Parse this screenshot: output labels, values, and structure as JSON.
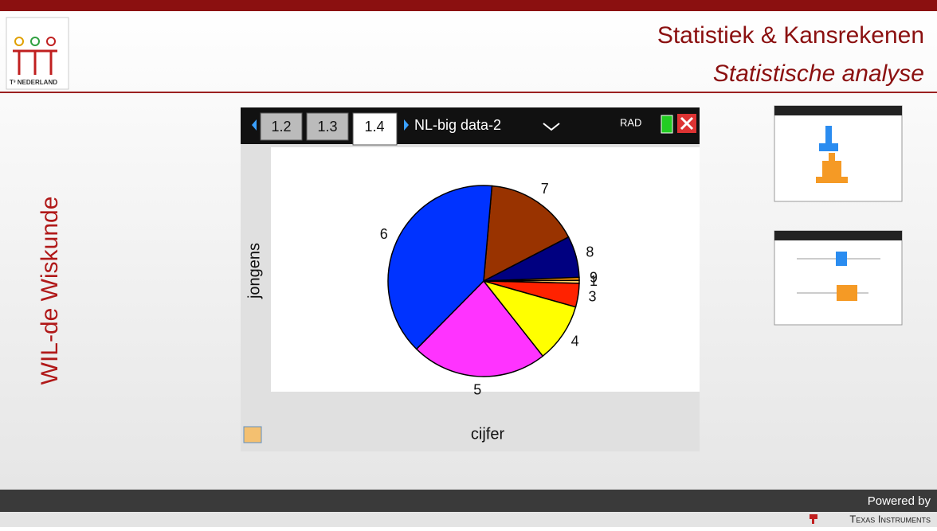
{
  "header": {
    "title": "Statistiek & Kansrekenen",
    "subtitle": "Statistische analyse",
    "logo_text": "T³ NEDERLAND"
  },
  "sidebar": "WIL-de Wiskunde",
  "device": {
    "tabs": [
      "1.2",
      "1.3",
      "1.4"
    ],
    "document": "NL-big data-2",
    "mode": "RAD"
  },
  "chart_data": {
    "type": "pie",
    "categories": [
      "7",
      "8",
      "9",
      "1",
      "3",
      "4",
      "5",
      "6"
    ],
    "values": [
      16,
      7,
      0.5,
      0.5,
      4,
      10,
      23,
      39
    ],
    "colors": [
      "#993300",
      "#000080",
      "#ff9900",
      "#ffcc66",
      "#ff2200",
      "#ffff00",
      "#ff33ff",
      "#0033ff"
    ],
    "y_label": "jongens",
    "x_label": "cijfer"
  },
  "footer": {
    "powered": "Powered by",
    "brand": "Texas Instruments"
  }
}
